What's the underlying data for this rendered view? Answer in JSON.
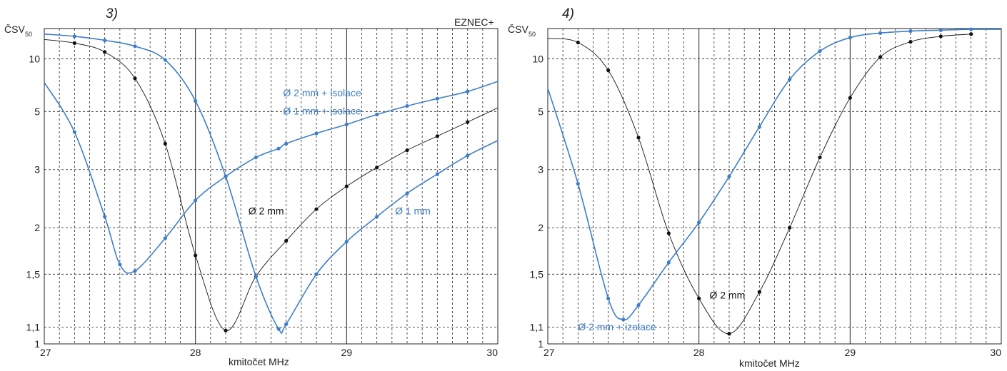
{
  "colors": {
    "black_series": "#111111",
    "blue_series": "#3d7ec8",
    "grid": "#222222"
  },
  "chart_data": [
    {
      "type": "line",
      "panel_tag": "3)",
      "badge": "EZNEC+",
      "ylabel_main": "ČSV",
      "ylabel_sub": "50",
      "xlabel": "kmitočet MHz",
      "xlim": [
        27,
        30
      ],
      "ylim": [
        1,
        20
      ],
      "yscale": "reflection",
      "grid": true,
      "x_ticks": [
        27,
        28,
        29,
        30
      ],
      "x_tick_labels": [
        "27",
        "28",
        "29",
        "30"
      ],
      "y_ticks": [
        1,
        1.1,
        1.5,
        2,
        3,
        5,
        10
      ],
      "y_tick_labels": [
        "1",
        "1,1",
        "1,5",
        "2",
        "3",
        "5",
        "10"
      ],
      "series": [
        {
          "name": "Ø 2 mm",
          "color": "#111111",
          "x": [
            27,
            27.2,
            27.4,
            27.6,
            27.8,
            28,
            28.2,
            28.4,
            28.6,
            28.8,
            29,
            29.2,
            29.4,
            29.6,
            29.8,
            30
          ],
          "y": [
            14.8,
            13.6,
            11.3,
            7.4,
            3.7,
            1.68,
            1.08,
            1.48,
            1.84,
            2.26,
            2.65,
            3.05,
            3.5,
            3.95,
            4.5,
            5.2
          ]
        },
        {
          "name": "Ø 1 mm",
          "color": "#3d7ec8",
          "x": [
            27,
            27.2,
            27.4,
            27.5,
            27.6,
            27.8,
            28,
            28.2,
            28.4,
            28.55,
            28.6,
            28.8,
            29,
            29.2,
            29.4,
            29.6,
            29.8,
            30
          ],
          "y": [
            7,
            4.1,
            2.15,
            1.59,
            1.53,
            1.87,
            2.4,
            2.85,
            3.3,
            3.55,
            3.7,
            4.05,
            4.4,
            4.85,
            5.3,
            5.75,
            6.25,
            7.1
          ]
        },
        {
          "name": "Ø 2 mm + isolace",
          "color": "#3d7ec8",
          "x": [
            27,
            27.2,
            27.4,
            27.6,
            27.8,
            28,
            28.2,
            28.4,
            28.55,
            28.6,
            28.8,
            29,
            29.2,
            29.4,
            29.6,
            29.8,
            30
          ],
          "y": [
            17,
            16,
            14.5,
            12.7,
            9.8,
            5.6,
            2.85,
            1.48,
            1.09,
            1.12,
            1.5,
            1.83,
            2.15,
            2.52,
            2.9,
            3.35,
            3.8
          ]
        }
      ],
      "annotations": [
        {
          "text": "Ø 2 mm + isolace",
          "color": "#3d7ec8",
          "x": 28.58,
          "y": 5.9
        },
        {
          "text": "Ø 1 mm + isolace",
          "color": "#3d7ec8",
          "x": 28.58,
          "y": 4.85
        },
        {
          "text": "Ø 2 mm",
          "color": "#111111",
          "x": 28.35,
          "y": 2.18
        },
        {
          "text": "Ø 1 mm",
          "color": "#3d7ec8",
          "x": 29.32,
          "y": 2.18
        }
      ]
    },
    {
      "type": "line",
      "panel_tag": "4)",
      "ylabel_main": "ČSV",
      "ylabel_sub": "50",
      "xlabel": "kmitočet MHz",
      "xlim": [
        27,
        30
      ],
      "ylim": [
        1,
        20
      ],
      "yscale": "reflection",
      "grid": true,
      "x_ticks": [
        27,
        28,
        29,
        30
      ],
      "x_tick_labels": [
        "27",
        "28",
        "29",
        "30"
      ],
      "y_ticks": [
        1,
        1.1,
        1.5,
        2,
        3,
        5,
        10
      ],
      "y_tick_labels": [
        "1",
        "1,1",
        "1,5",
        "2",
        "3",
        "5",
        "10"
      ],
      "series": [
        {
          "name": "Ø 2 mm",
          "color": "#111111",
          "x": [
            27,
            27.2,
            27.4,
            27.6,
            27.8,
            28,
            28.2,
            28.4,
            28.6,
            28.8,
            29,
            29.2,
            29.4,
            29.6,
            29.8
          ],
          "y": [
            15.2,
            13.8,
            8.3,
            3.9,
            1.93,
            1.3,
            1.06,
            1.35,
            2,
            3.3,
            5.8,
            10.3,
            14,
            16,
            17
          ]
        },
        {
          "name": "Ø 2 mm + izolace",
          "color": "#3d7ec8",
          "x": [
            27,
            27.2,
            27.4,
            27.5,
            27.6,
            27.8,
            28,
            28.2,
            28.4,
            28.6,
            28.8,
            29,
            29.2,
            29.4,
            29.6,
            29.8,
            30
          ],
          "y": [
            6.5,
            2.7,
            1.3,
            1.15,
            1.25,
            1.61,
            2.07,
            2.85,
            4.3,
            7.3,
            11.5,
            15.5,
            17.5,
            18.5,
            19,
            19.5,
            19.5
          ]
        }
      ],
      "annotations": [
        {
          "text": "Ø 2 mm",
          "color": "#111111",
          "x": 28.07,
          "y": 1.3
        },
        {
          "text": "Ø 2 mm + izolace",
          "color": "#3d7ec8",
          "x": 27.2,
          "y": 1.08
        }
      ]
    }
  ]
}
